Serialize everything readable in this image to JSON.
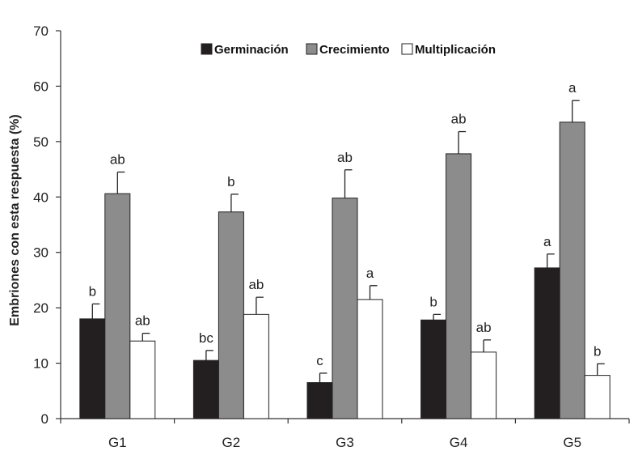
{
  "chart_data": {
    "type": "bar",
    "ylabel": "Embriones con esta respuesta (%)",
    "xlabel": "",
    "ylim": [
      0,
      70
    ],
    "yticks": [
      "0",
      "10",
      "20",
      "30",
      "40",
      "50",
      "60",
      "70"
    ],
    "categories": [
      "G1",
      "G2",
      "G3",
      "G4",
      "G5"
    ],
    "legend_position": "top",
    "series": [
      {
        "name": "Germinación",
        "color": "#231f20",
        "values": [
          18,
          10.5,
          6.5,
          17.8,
          27.2
        ],
        "errors": [
          2.7,
          1.8,
          1.7,
          1.0,
          2.5
        ],
        "labels": [
          "b",
          "bc",
          "c",
          "b",
          "a"
        ]
      },
      {
        "name": "Crecimiento",
        "color": "#8c8c8c",
        "values": [
          40.6,
          37.3,
          39.8,
          47.8,
          53.5
        ],
        "errors": [
          3.9,
          3.2,
          5.1,
          4.0,
          3.9
        ],
        "labels": [
          "ab",
          "b",
          "ab",
          "ab",
          "a"
        ]
      },
      {
        "name": "Multiplicación",
        "color": "#ffffff",
        "values": [
          14,
          18.8,
          21.5,
          12,
          7.8
        ],
        "errors": [
          1.4,
          3.1,
          2.5,
          2.2,
          2.1
        ],
        "labels": [
          "ab",
          "ab",
          "a",
          "ab",
          "b"
        ]
      }
    ]
  }
}
